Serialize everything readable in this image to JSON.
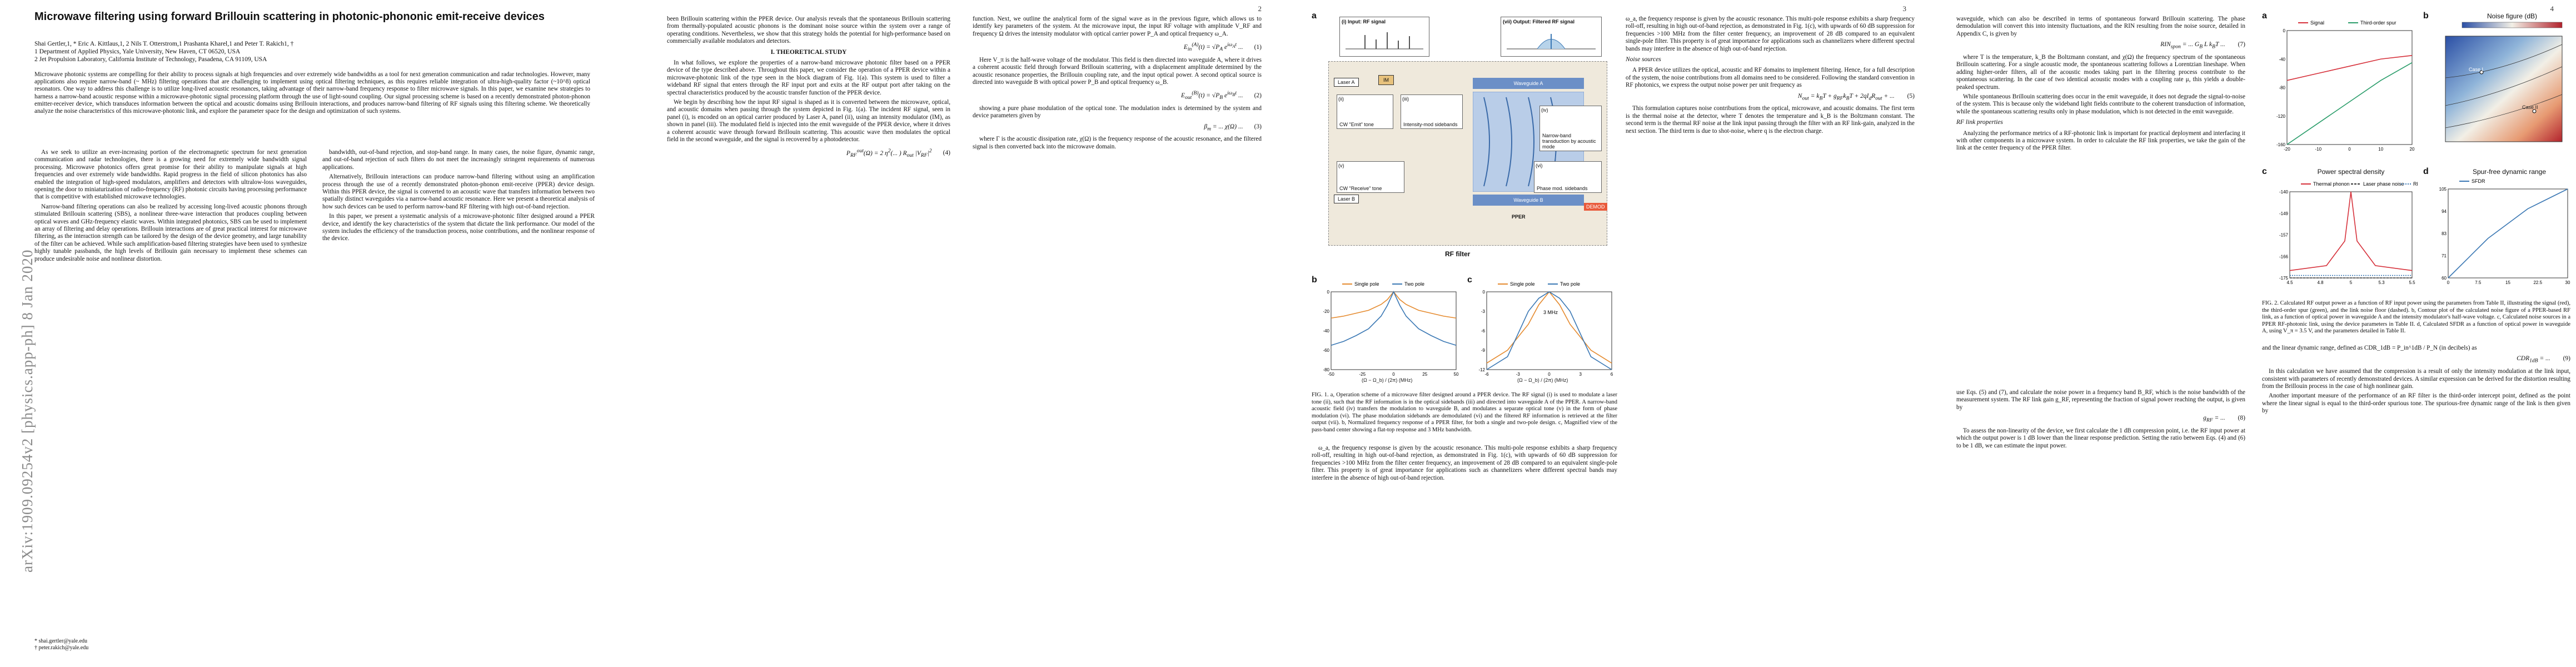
{
  "side_label": "arXiv:1909.09254v2  [physics.app-ph]  8 Jan 2020",
  "page_numbers": [
    "2",
    "3",
    "4"
  ],
  "paper": {
    "title": "Microwave filtering using forward Brillouin scattering in photonic-phononic emit-receive devices",
    "authors": "Shai Gertler,1, * Eric A. Kittlaus,1, 2 Nils T. Otterstrom,1 Prashanta Kharel,1 and Peter T. Rakich1, †",
    "affil1": "1 Department of Applied Physics, Yale University, New Haven, CT 06520, USA",
    "affil2": "2 Jet Propulsion Laboratory, California Institute of Technology, Pasadena, CA 91109, USA",
    "abstract": "Microwave photonic systems are compelling for their ability to process signals at high frequencies and over extremely wide bandwidths as a tool for next generation communication and radar technologies. However, many applications also require narrow-band (~ MHz) filtering operations that are challenging to implement using optical filtering techniques, as this requires reliable integration of ultra-high-quality factor (~10^8) optical resonators. One way to address this challenge is to utilize long-lived acoustic resonances, taking advantage of their narrow-band frequency response to filter microwave signals. In this paper, we examine new strategies to harness a narrow-band acoustic response within a microwave-photonic signal processing platform through the use of light-sound coupling. Our signal processing scheme is based on a recently demonstrated photon-phonon emitter-receiver device, which transduces information between the optical and acoustic domains using Brillouin interactions, and produces narrow-band filtering of RF signals using this filtering scheme. We theoretically analyze the noise characteristics of this microwave-photonic link, and explore the parameter space for the design and optimization of such systems.",
    "intro_heading": "As we seek to utilize an ever-increasing portion of the electromagnetic spectrum for next generation communication and radar technologies, there is a growing need for extremely wide bandwidth signal processing. Microwave photonics offers great promise for their ability to manipulate signals at high frequencies and over extremely wide bandwidths. Rapid progress in the field of silicon photonics has also enabled the integration of high-speed modulators, amplifiers and detectors with ultralow-loss waveguides, opening the door to miniaturization of radio-frequency (RF) photonic circuits having processing performance that is competitive with established microwave technologies.",
    "intro_p2": "Narrow-band filtering operations can also be realized by accessing long-lived acoustic phonons through stimulated Brillouin scattering (SBS), a nonlinear three-wave interaction that produces coupling between optical waves and GHz-frequency elastic waves. Within integrated photonics, SBS can be used to implement an array of filtering and delay operations. Brillouin interactions are of great practical interest for microwave filtering, as the interaction strength can be tailored by the design of the device geometry, and large tunability of the filter can be achieved. While such amplification-based filtering strategies have been used to synthesize highly tunable passbands, the high levels of Brillouin gain necessary to implement these schemes can produce undesirable noise and nonlinear distortion.",
    "col2_p1": "bandwidth, out-of-band rejection, and stop-band range. In many cases, the noise figure, dynamic range, and out-of-band rejection of such filters do not meet the increasingly stringent requirements of numerous applications.",
    "col2_p2": "Alternatively, Brillouin interactions can produce narrow-band filtering without using an amplification process through the use of a recently demonstrated photon-phonon emit-receive (PPER) device design. Within this PPER device, the signal is converted to an acoustic wave that transfers information between two spatially distinct waveguides via a narrow-band acoustic resonance. Here we present a theoretical analysis of how such devices can be used to perform narrow-band RF filtering with high out-of-band rejection.",
    "col2_p3": "In this paper, we present a systematic analysis of a microwave-photonic filter designed around a PPER device, and identify the key characteristics of the system that dictate the link performance. Our model of the system includes the efficiency of the transduction process, noise contributions, and the nonlinear response of the device.",
    "col3_p1": "been Brillouin scattering within the PPER device. Our analysis reveals that the spontaneous Brillouin scattering from thermally-populated acoustic phonons is the dominant noise source within the system over a range of operating conditions. Nevertheless, we show that this strategy holds the potential for high-performance based on commercially available modulators and detectors.",
    "section_I": "I.  THEORETICAL STUDY",
    "col3_p2": "In what follows, we explore the properties of a narrow-band microwave photonic filter based on a PPER device of the type described above. Throughout this paper, we consider the operation of a PPER device within a microwave-photonic link of the type seen in the block diagram of Fig. 1(a). This system is used to filter a wideband RF signal that enters through the RF input port and exits at the RF output port after taking on the spectral characteristics produced by the acoustic transfer function of the PPER device.",
    "col3_p3": "We begin by describing how the input RF signal is shaped as it is converted between the microwave, optical, and acoustic domains when passing through the system depicted in Fig. 1(a). The incident RF signal, seen in panel (i), is encoded on an optical carrier produced by Laser A, panel (ii), using an intensity modulator (IM), as shown in panel (iii). The modulated field is injected into the emit waveguide of the PPER device, where it drives a coherent acoustic wave through forward Brillouin scattering. This acoustic wave then modulates the optical field in the second waveguide, and the signal is recovered by a photodetector.",
    "col4_p1": "function. Next, we outline the analytical form of the signal wave as in the previous figure, which allows us to identify key parameters of the system. At the microwave input, the input RF voltage with amplitude V_RF and frequency Ω drives the intensity modulator with optical carrier power P_A and optical frequency ω_A.",
    "col4_p2": "Here V_π is the half-wave voltage of the modulator. This field is then directed into waveguide A, where it drives a coherent acoustic field through forward Brillouin scattering, with a displacement amplitude determined by the acoustic resonance properties, the Brillouin coupling rate, and the input optical power. A second optical source is directed into waveguide B with optical power P_B and optical frequency ω_B.",
    "col4_p3": "showing a pure phase modulation of the optical tone. The modulation index is determined by the system and device parameters given by",
    "col4_p4": "where Γ is the acoustic dissipation rate, χ(Ω) is the frequency response of the acoustic resonance, and the filtered signal is then converted back into the microwave domain.",
    "col5_p1": "ω_a, the frequency response is given by the acoustic resonance. This multi-pole response exhibits a sharp frequency roll-off, resulting in high out-of-band rejection, as demonstrated in Fig. 1(c), with upwards of 60 dB suppression for frequencies >100 MHz from the filter center frequency, an improvement of 28 dB compared to an equivalent single-pole filter. This property is of great importance for applications such as channelizers where different spectral bands may interfere in the absence of high out-of-band rejection.",
    "noise_heading": "Noise sources",
    "col5_p2": "A PPER device utilizes the optical, acoustic and RF domains to implement filtering. Hence, for a full description of the system, the noise contributions from all domains need to be considered. Following the standard convention in RF photonics, we express the output noise power per unit frequency as",
    "col5_p3": "This formulation captures noise contributions from the optical, microwave, and acoustic domains. The first term is the thermal noise at the detector, where T denotes the temperature and k_B is the Boltzmann constant. The second term is the thermal RF noise at the link input passing through the filter with an RF link-gain, analyzed in the next section. The third term is due to shot-noise, where q is the electron charge.",
    "rf_link_heading": "RF link properties",
    "col6_p1": "waveguide, which can also be described in terms of spontaneous forward Brillouin scattering. The phase demodulation will convert this into intensity fluctuations, and the RIN resulting from the noise source, detailed in Appendix C, is given by",
    "col6_p2": "where T is the temperature, k_B the Boltzmann constant, and χ(Ω) the frequency spectrum of the spontaneous Brillouin scattering. For a single acoustic mode, the spontaneous scattering follows a Lorentzian lineshape. When adding higher-order filters, all of the acoustic modes taking part in the filtering process contribute to the spontaneous scattering. In the case of two identical acoustic modes with a coupling rate μ, this yields a double-peaked spectrum.",
    "col6_p3": "While spontaneous Brillouin scattering does occur in the emit waveguide, it does not degrade the signal-to-noise of the system. This is because only the wideband light fields contribute to the coherent transduction of information, while the spontaneous scattering results only in phase modulation, which is not detected in the emit waveguide.",
    "col6_p4": "Analyzing the performance metrics of a RF-photonic link is important for practical deployment and interfacing it with other components in a microwave system. In order to calculate the RF link properties, we take the gain of the link at the center frequency of the PPER filter.",
    "col7_p1": "use Eqs. (5) and (7), and calculate the noise power in a frequency band B_RF, which is the noise bandwidth of the measurement system. The RF link gain g_RF, representing the fraction of signal power reaching the output, is given by",
    "col7_p2": "To assess the non-linearity of the device, we first calculate the 1 dB compression point, i.e. the RF input power at which the output power is 1 dB lower than the linear response prediction. Setting the ratio between Eqs. (4) and (6) to be 1 dB, we can estimate the input power.",
    "col8_p1": "and the linear dynamic range, defined as CDR_1dB = P_in^1dB / P_N (in decibels) as",
    "col8_p2": "In this calculation we have assumed that the compression is a result of only the intensity modulation at the link input, consistent with parameters of recently demonstrated devices. A similar expression can be derived for the distortion resulting from the Brillouin process in the case of high nonlinear gain.",
    "col8_p3": "Another important measure of the performance of an RF filter is the third-order intercept point, defined as the point where the linear signal is equal to the third-order spurious tone. The spurious-free dynamic range of the link is then given by",
    "footnote1": "* shai.gertler@yale.edu",
    "footnote2": "† peter.rakich@yale.edu"
  },
  "fig1": {
    "panel_a": "a",
    "panel_b": "b",
    "panel_c": "c",
    "input_label": "(i) Input: RF signal",
    "output_label": "(vii) Output: Filtered RF signal",
    "laser_a": "Laser A",
    "laser_b": "Laser B",
    "im": "IM",
    "cw_tone": "CW \"Emit\" tone",
    "intensity_sidebands": "Intensity-mod sidebands",
    "cw_receive": "CW \"Receive\" tone",
    "phase_sidebands": "Phase mod. sidebands",
    "waveguide_a": "Waveguide A",
    "waveguide_b": "Waveguide B",
    "narrow_band": "Narrow-band transduction by acoustic mode",
    "ppeR": "PPER",
    "demod": "DEMOD",
    "rf_filter": "RF filter",
    "roman": [
      "(ii)",
      "(iii)",
      "(iv)",
      "(v)",
      "(vi)"
    ],
    "legend_single": "Single pole",
    "legend_two": "Two pole",
    "b_xlabel": "(Ω − Ω_b) / (2π) (MHz)",
    "c_xlabel": "(Ω − Ω_b) / (2π) (MHz)",
    "b_ylabel": "|χ|² (dB)",
    "c_ylabel": "|χ| (dB)",
    "c_annotation": "3 MHz",
    "caption": "FIG. 1. a, Operation scheme of a microwave filter designed around a PPER device. The RF signal (i) is used to modulate a laser tone (ii), such that the RF information is in the optical sidebands (iii) and directed into waveguide A of the PPER. A narrow-band acoustic field (iv) transfers the modulation to waveguide B, and modulates a separate optical tone (v) in the form of phase modulation (vi). The phase modulation sidebands are demodulated (vi) and the filtered RF information is retrieved at the filter output (vii). b, Normalized frequency response of a PPER filter, for both a single and two-pole design. c, Magnified view of the pass-band center showing a flat-top response and 3 MHz bandwidth."
  },
  "fig2": {
    "panel_a": "a",
    "panel_b": "b",
    "panel_c": "c",
    "panel_d": "d",
    "legend_signal": "Signal",
    "legend_third": "Third-order spur",
    "b_title": "Noise figure (dB)",
    "c_title": "Power spectral density",
    "d_title": "Spur-free dynamic range",
    "a_xlabel": "P_RF^in (dBm)",
    "a_ylabel": "P_RF^out (dBm)",
    "c_xlabel": "Ω/(2π) (GHz)",
    "c_ylabel": "PSD (dBm/Hz)",
    "c_legend": [
      "Thermal phonon",
      "Laser phase noise",
      "RF thermal noise"
    ],
    "b_labels": [
      "Case I",
      "Case II"
    ],
    "caption": "FIG. 2. Calculated RF output power as a function of RF input power using the parameters from Table II, illustrating the signal (red), the third-order spur (green), and the link noise floor (dashed). b, Contour plot of the calculated noise figure of a PPER-based RF link, as a function of optical power in waveguide A and the intensity modulator's half-wave voltage. c, Calculated noise sources in a PPER RF-photonic link, using the device parameters in Table II. d, Calculated SFDR as a function of optical power in waveguide A, using V_π = 3.5 V, and the parameters detailed in Table II."
  },
  "chart_data": [
    {
      "type": "line",
      "title": "",
      "xlabel": "(Ω − Ω_b) / (2π) (MHz)",
      "ylabel": "|χ|² (dB)",
      "xlim": [
        -50,
        50
      ],
      "ylim": [
        -80,
        0
      ],
      "series": [
        {
          "name": "Single pole",
          "x": [
            -50,
            -40,
            -30,
            -20,
            -10,
            -5,
            0,
            5,
            10,
            20,
            30,
            40,
            50
          ],
          "y": [
            -27,
            -25,
            -22,
            -19,
            -13,
            -8,
            0,
            -8,
            -13,
            -19,
            -22,
            -25,
            -27
          ]
        },
        {
          "name": "Two pole",
          "x": [
            -50,
            -40,
            -30,
            -20,
            -10,
            -5,
            0,
            5,
            10,
            20,
            30,
            40,
            50
          ],
          "y": [
            -55,
            -51,
            -45,
            -38,
            -25,
            -14,
            0,
            -14,
            -25,
            -38,
            -45,
            -51,
            -55
          ]
        }
      ]
    },
    {
      "type": "line",
      "title": "",
      "xlabel": "(Ω − Ω_b) / (2π) (MHz)",
      "ylabel": "|χ| (dB)",
      "xlim": [
        -6,
        6
      ],
      "ylim": [
        -12,
        0
      ],
      "annotation": "3 MHz",
      "series": [
        {
          "name": "Single pole",
          "x": [
            -6,
            -4,
            -2,
            -1,
            0,
            1,
            2,
            4,
            6
          ],
          "y": [
            -11,
            -9,
            -5,
            -2,
            0,
            -2,
            -5,
            -9,
            -11
          ]
        },
        {
          "name": "Two pole",
          "x": [
            -6,
            -4,
            -2,
            -1,
            0,
            1,
            2,
            4,
            6
          ],
          "y": [
            -12,
            -10,
            -3,
            -1,
            0,
            -1,
            -3,
            -10,
            -12
          ]
        }
      ]
    },
    {
      "type": "line",
      "title": "",
      "xlabel": "P_RF^in (dBm)",
      "ylabel": "P_RF^out (dBm)",
      "xlim": [
        -20,
        20
      ],
      "ylim": [
        -160,
        0
      ],
      "series": [
        {
          "name": "Signal",
          "x": [
            -20,
            -10,
            0,
            10,
            20
          ],
          "y": [
            -70,
            -60,
            -50,
            -40,
            -35
          ]
        },
        {
          "name": "Third-order spur",
          "x": [
            -20,
            -10,
            0,
            10,
            20
          ],
          "y": [
            -160,
            -130,
            -100,
            -70,
            -45
          ]
        }
      ]
    },
    {
      "type": "heatmap",
      "title": "Noise figure (dB)",
      "labels": [
        "Case I",
        "Case II"
      ]
    },
    {
      "type": "line",
      "title": "Power spectral density",
      "xlabel": "Ω/(2π) (GHz)",
      "ylabel": "PSD (dBm/Hz)",
      "xlim": [
        4.5,
        5.5
      ],
      "series": [
        {
          "name": "Thermal phonon",
          "x": [
            4.5,
            4.8,
            4.95,
            5.0,
            5.05,
            5.2,
            5.5
          ],
          "y": [
            -172,
            -170,
            -160,
            -140,
            -160,
            -170,
            -172
          ]
        },
        {
          "name": "Laser phase noise",
          "x": [
            4.5,
            5.5
          ],
          "y": [
            -175,
            -175
          ]
        },
        {
          "name": "RF thermal noise",
          "x": [
            4.5,
            5.5
          ],
          "y": [
            -174,
            -174
          ]
        }
      ]
    },
    {
      "type": "line",
      "title": "Spur-free dynamic range",
      "xlabel": "P_A (dBm)",
      "ylabel": "SFDR (dB·Hz^(2/3))",
      "series": [
        {
          "name": "SFDR",
          "x": [
            0,
            10,
            20,
            30
          ],
          "y": [
            60,
            80,
            95,
            105
          ]
        }
      ]
    }
  ]
}
